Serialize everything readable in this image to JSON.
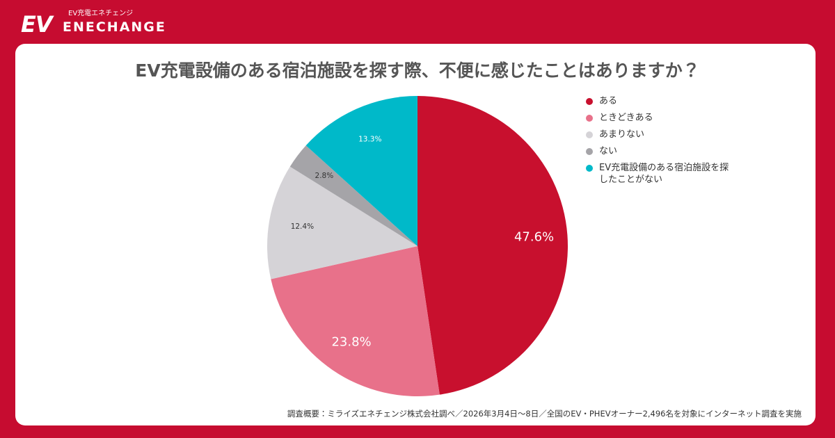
{
  "header": {
    "tagline": "EV充電エネチェンジ",
    "logo_mark": "EV",
    "logo_text": "ENECHANGE"
  },
  "chart_data": {
    "type": "pie",
    "title": "EV充電設備のある宿泊施設を探す際、不便に感じたことはありますか？",
    "categories": [
      "ある",
      "ときどきある",
      "あまりない",
      "ない",
      "EV充電設備のある宿泊施設を探したことがない"
    ],
    "values": [
      47.6,
      23.8,
      12.4,
      2.8,
      13.3
    ],
    "value_labels": [
      "47.6%",
      "23.8%",
      "12.4%",
      "2.8%",
      "13.3%"
    ],
    "colors": [
      "#c8102e",
      "#e8718a",
      "#d5d3d7",
      "#a5a4a8",
      "#00b9c9"
    ],
    "label_colors": [
      "#ffffff",
      "#ffffff",
      "#333333",
      "#333333",
      "#ffffff"
    ],
    "legend": "top-right",
    "note": "調査概要：ミライズエネチェンジ株式会社調べ／2026年3月4日〜8日／全国のEV・PHEVオーナー2,496名を対象にインターネット調査を実施"
  }
}
